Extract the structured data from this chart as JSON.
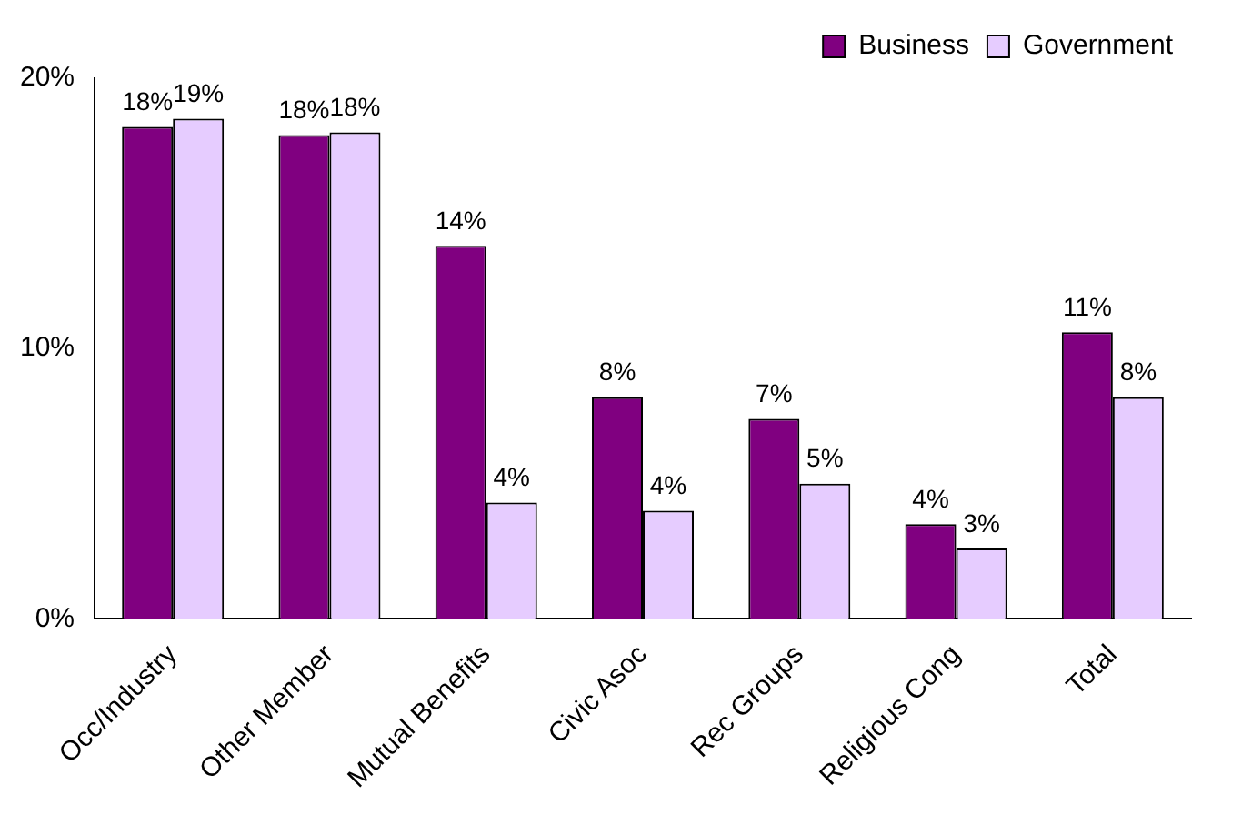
{
  "chart_data": {
    "type": "bar",
    "categories": [
      "Occ/Industry",
      "Other Member",
      "Mutual Benefits",
      "Civic Asoc",
      "Rec Groups",
      "Religious Cong",
      "Total"
    ],
    "series": [
      {
        "name": "Business",
        "color": "#800080",
        "values": [
          18.2,
          17.9,
          13.8,
          8.2,
          7.4,
          3.5,
          10.6
        ],
        "value_labels": [
          "18%",
          "18%",
          "14%",
          "8%",
          "7%",
          "4%",
          "11%"
        ]
      },
      {
        "name": "Government",
        "color": "#e6ccff",
        "values": [
          18.5,
          18.0,
          4.3,
          4.0,
          5.0,
          2.6,
          8.2
        ],
        "value_labels": [
          "19%",
          "18%",
          "4%",
          "4%",
          "5%",
          "3%",
          "8%"
        ]
      }
    ],
    "ylim": [
      0,
      20
    ],
    "yticks": [
      {
        "value": 0,
        "label": "0%"
      },
      {
        "value": 10,
        "label": "10%"
      },
      {
        "value": 20,
        "label": "20%"
      }
    ],
    "grid": false,
    "legend": "top right"
  }
}
